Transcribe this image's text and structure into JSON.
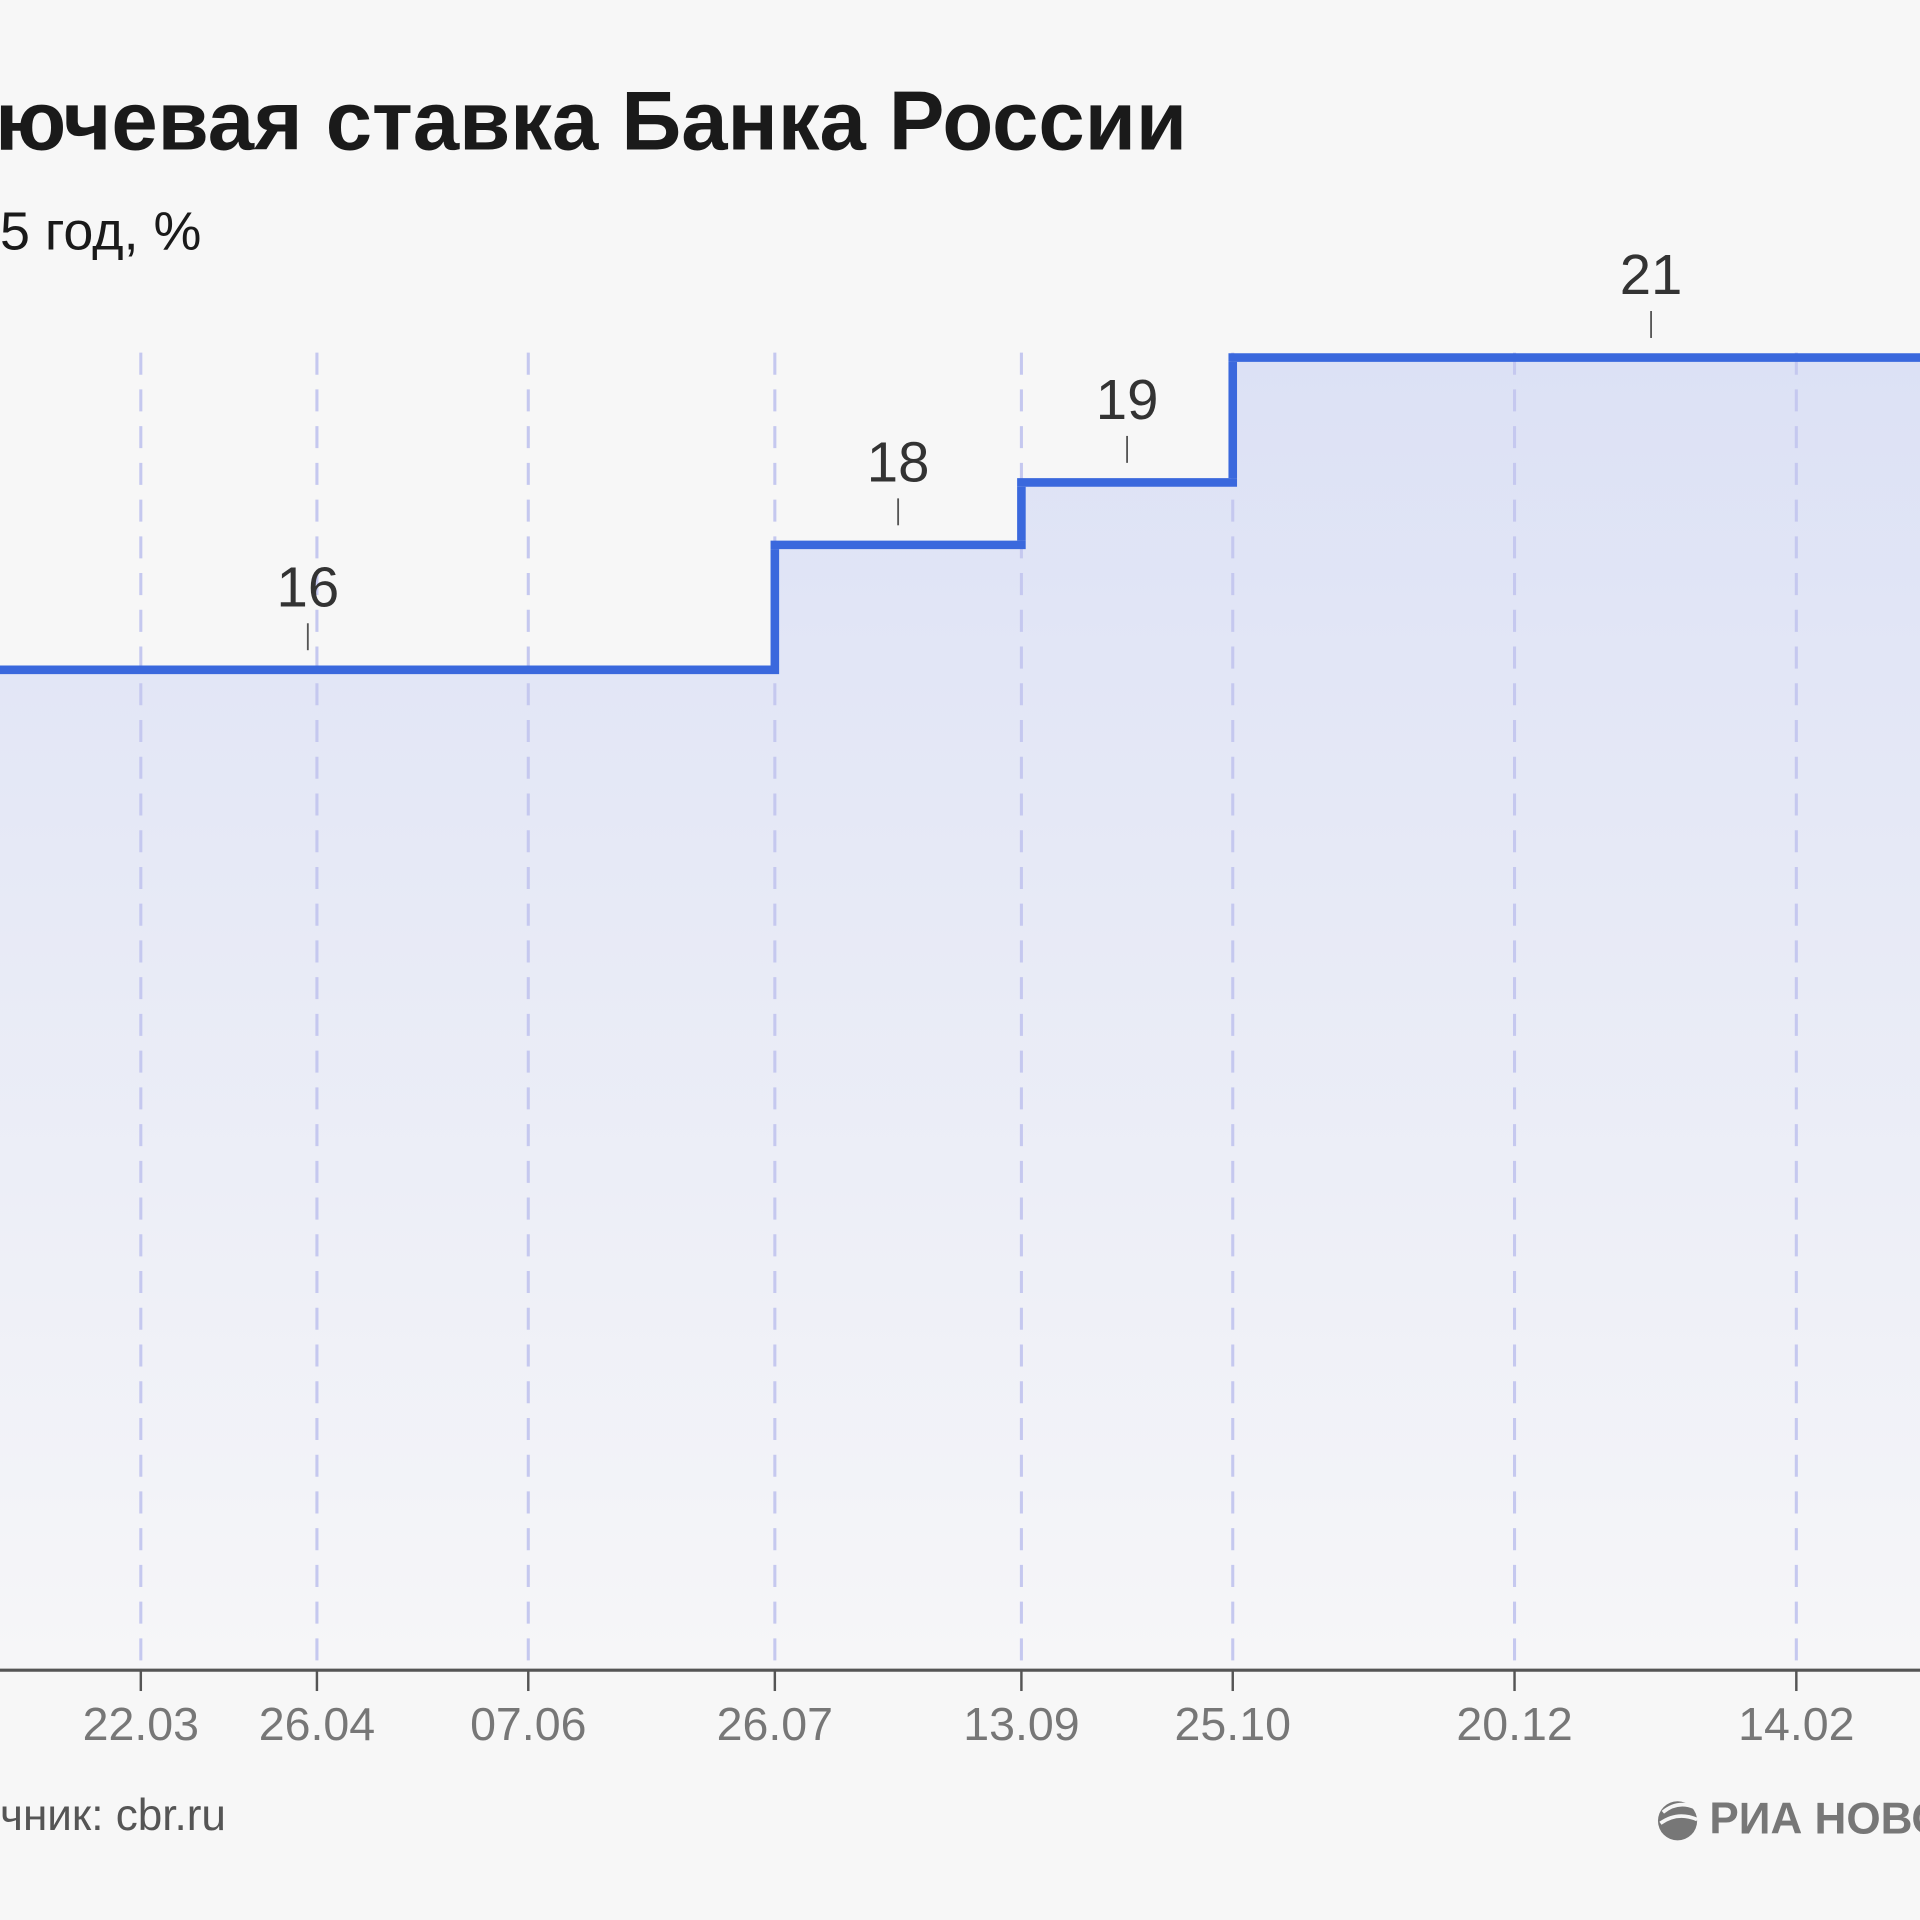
{
  "chart_data": {
    "type": "line",
    "step": true,
    "title": "ючевая ставка Банка России",
    "subtitle": "5 год, %",
    "source": "чник: cbr.ru",
    "logo": "РИА НОВО",
    "x": [
      null,
      "26.07",
      "13.09",
      "25.10"
    ],
    "series": [
      {
        "color": "#3a68dd",
        "values": [
          16,
          18,
          19,
          21
        ]
      }
    ],
    "xticks": [
      "22.03",
      "26.04",
      "07.06",
      "26.07",
      "13.09",
      "25.10",
      "20.12",
      "14.02"
    ],
    "ylim": [
      0,
      25
    ],
    "grid": true
  }
}
